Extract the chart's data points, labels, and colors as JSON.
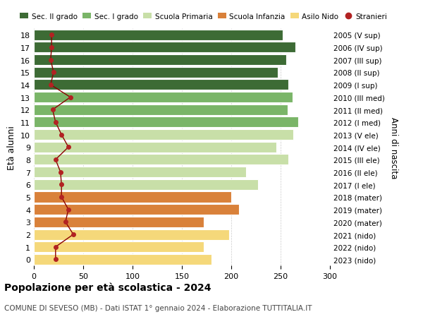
{
  "ages": [
    18,
    17,
    16,
    15,
    14,
    13,
    12,
    11,
    10,
    9,
    8,
    7,
    6,
    5,
    4,
    3,
    2,
    1,
    0
  ],
  "bar_values": [
    252,
    265,
    256,
    247,
    258,
    262,
    257,
    268,
    263,
    246,
    258,
    215,
    227,
    200,
    208,
    172,
    198,
    172,
    180
  ],
  "stranieri": [
    18,
    18,
    17,
    20,
    17,
    37,
    19,
    22,
    28,
    35,
    22,
    27,
    28,
    28,
    35,
    32,
    40,
    22,
    22
  ],
  "bar_colors_by_age": {
    "18": "#3d6b35",
    "17": "#3d6b35",
    "16": "#3d6b35",
    "15": "#3d6b35",
    "14": "#3d6b35",
    "13": "#7ab568",
    "12": "#7ab568",
    "11": "#7ab568",
    "10": "#c8dfa8",
    "9": "#c8dfa8",
    "8": "#c8dfa8",
    "7": "#c8dfa8",
    "6": "#c8dfa8",
    "5": "#d9813a",
    "4": "#d9813a",
    "3": "#d9813a",
    "2": "#f5d87a",
    "1": "#f5d87a",
    "0": "#f5d87a"
  },
  "right_labels_by_age": {
    "18": "2005 (V sup)",
    "17": "2006 (IV sup)",
    "16": "2007 (III sup)",
    "15": "2008 (II sup)",
    "14": "2009 (I sup)",
    "13": "2010 (III med)",
    "12": "2011 (II med)",
    "11": "2012 (I med)",
    "10": "2013 (V ele)",
    "9": "2014 (IV ele)",
    "8": "2015 (III ele)",
    "7": "2016 (II ele)",
    "6": "2017 (I ele)",
    "5": "2018 (mater)",
    "4": "2019 (mater)",
    "3": "2020 (mater)",
    "2": "2021 (nido)",
    "1": "2022 (nido)",
    "0": "2023 (nido)"
  },
  "legend_labels": [
    "Sec. II grado",
    "Sec. I grado",
    "Scuola Primaria",
    "Scuola Infanzia",
    "Asilo Nido",
    "Stranieri"
  ],
  "legend_colors": [
    "#3d6b35",
    "#7ab568",
    "#c8dfa8",
    "#d9813a",
    "#f5d87a",
    "#b22222"
  ],
  "ylabel": "Età alunni",
  "right_ylabel": "Anni di nascita",
  "title": "Popolazione per età scolastica - 2024",
  "subtitle": "COMUNE DI SEVESO (MB) - Dati ISTAT 1° gennaio 2024 - Elaborazione TUTTITALIA.IT",
  "xlim": [
    0,
    300
  ],
  "xticks": [
    0,
    50,
    100,
    150,
    200,
    250,
    300
  ],
  "bg_color": "#ffffff",
  "stranieri_color": "#b22222",
  "stranieri_line_color": "#8b0000"
}
